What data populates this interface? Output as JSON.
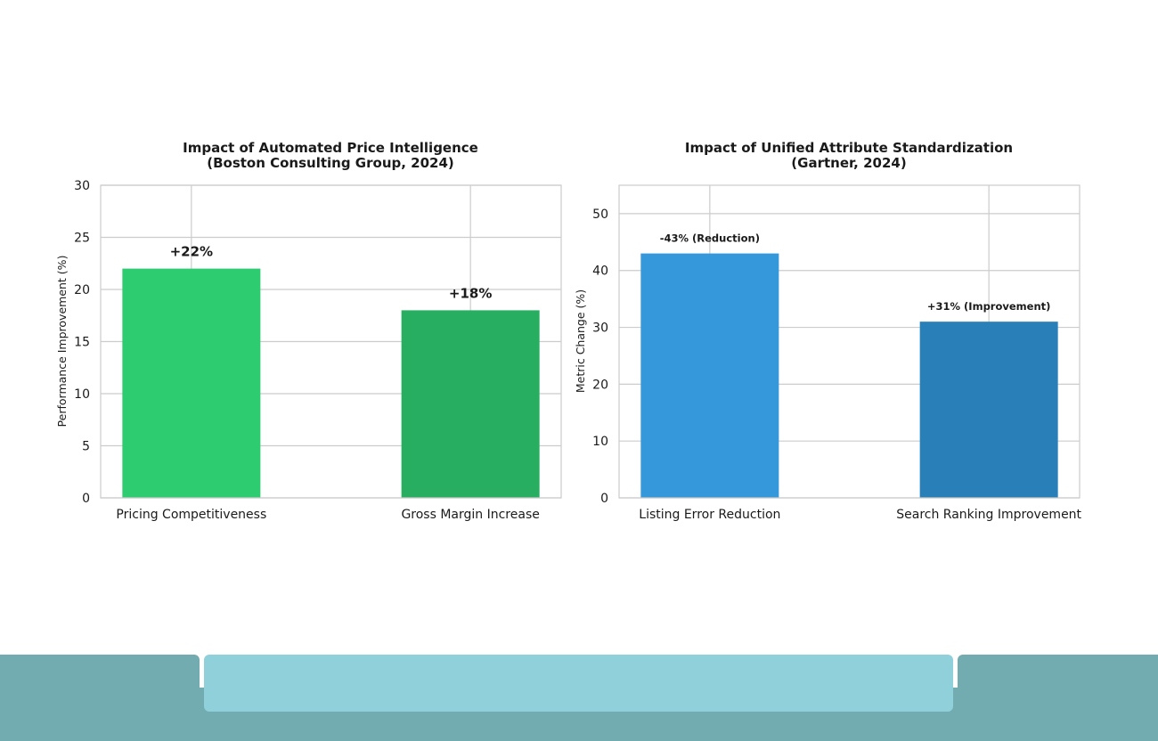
{
  "chart_data": [
    {
      "type": "bar",
      "title": "Impact of Automated Price Intelligence",
      "subtitle": "(Boston Consulting Group, 2024)",
      "xlabel": "",
      "ylabel": "Performance Improvement (%)",
      "categories": [
        "Pricing Competitiveness",
        "Gross Margin Increase"
      ],
      "values": [
        22,
        18
      ],
      "data_labels": [
        "+22%",
        "+18%"
      ],
      "colors": [
        "#2ecc71",
        "#27ae60"
      ],
      "ylim": [
        0,
        30
      ],
      "yticks": [
        0,
        5,
        10,
        15,
        20,
        25,
        30
      ],
      "grid": true,
      "legend": "none"
    },
    {
      "type": "bar",
      "title": "Impact of Unified Attribute Standardization",
      "subtitle": "(Gartner, 2024)",
      "xlabel": "",
      "ylabel": "Metric Change (%)",
      "categories": [
        "Listing Error Reduction",
        "Search Ranking Improvement"
      ],
      "values": [
        43,
        31
      ],
      "data_labels": [
        "-43% (Reduction)",
        "+31% (Improvement)"
      ],
      "colors": [
        "#3498db",
        "#2980b9"
      ],
      "ylim": [
        0,
        55
      ],
      "yticks": [
        0,
        10,
        20,
        30,
        40,
        50
      ],
      "grid": true,
      "legend": "none"
    }
  ]
}
